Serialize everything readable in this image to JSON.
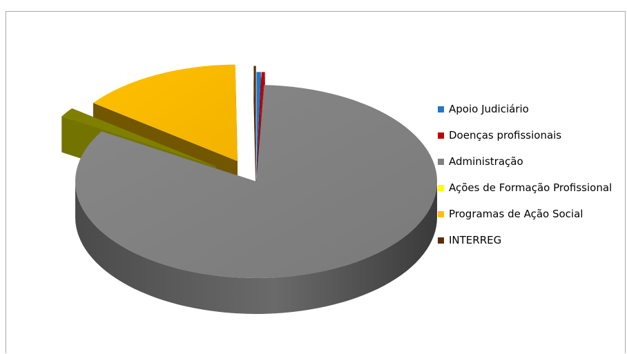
{
  "chart_data": {
    "type": "pie",
    "style": "3d-exploded",
    "categories": [
      "Apoio Judiciário",
      "Doenças profissionais",
      "Administração",
      "Ações de Formação Profissional",
      "Programas de Ação Social",
      "INTERREG"
    ],
    "values": [
      0.4,
      0.3,
      83.0,
      1.6,
      14.5,
      0.2
    ],
    "unit": "%",
    "colors": [
      "#1f77c9",
      "#c00000",
      "#808080",
      "#ffff00",
      "#ffc000",
      "#5b2c0b"
    ],
    "exploded": [
      true,
      true,
      false,
      true,
      true,
      true
    ],
    "legend": {
      "position": "right"
    }
  }
}
